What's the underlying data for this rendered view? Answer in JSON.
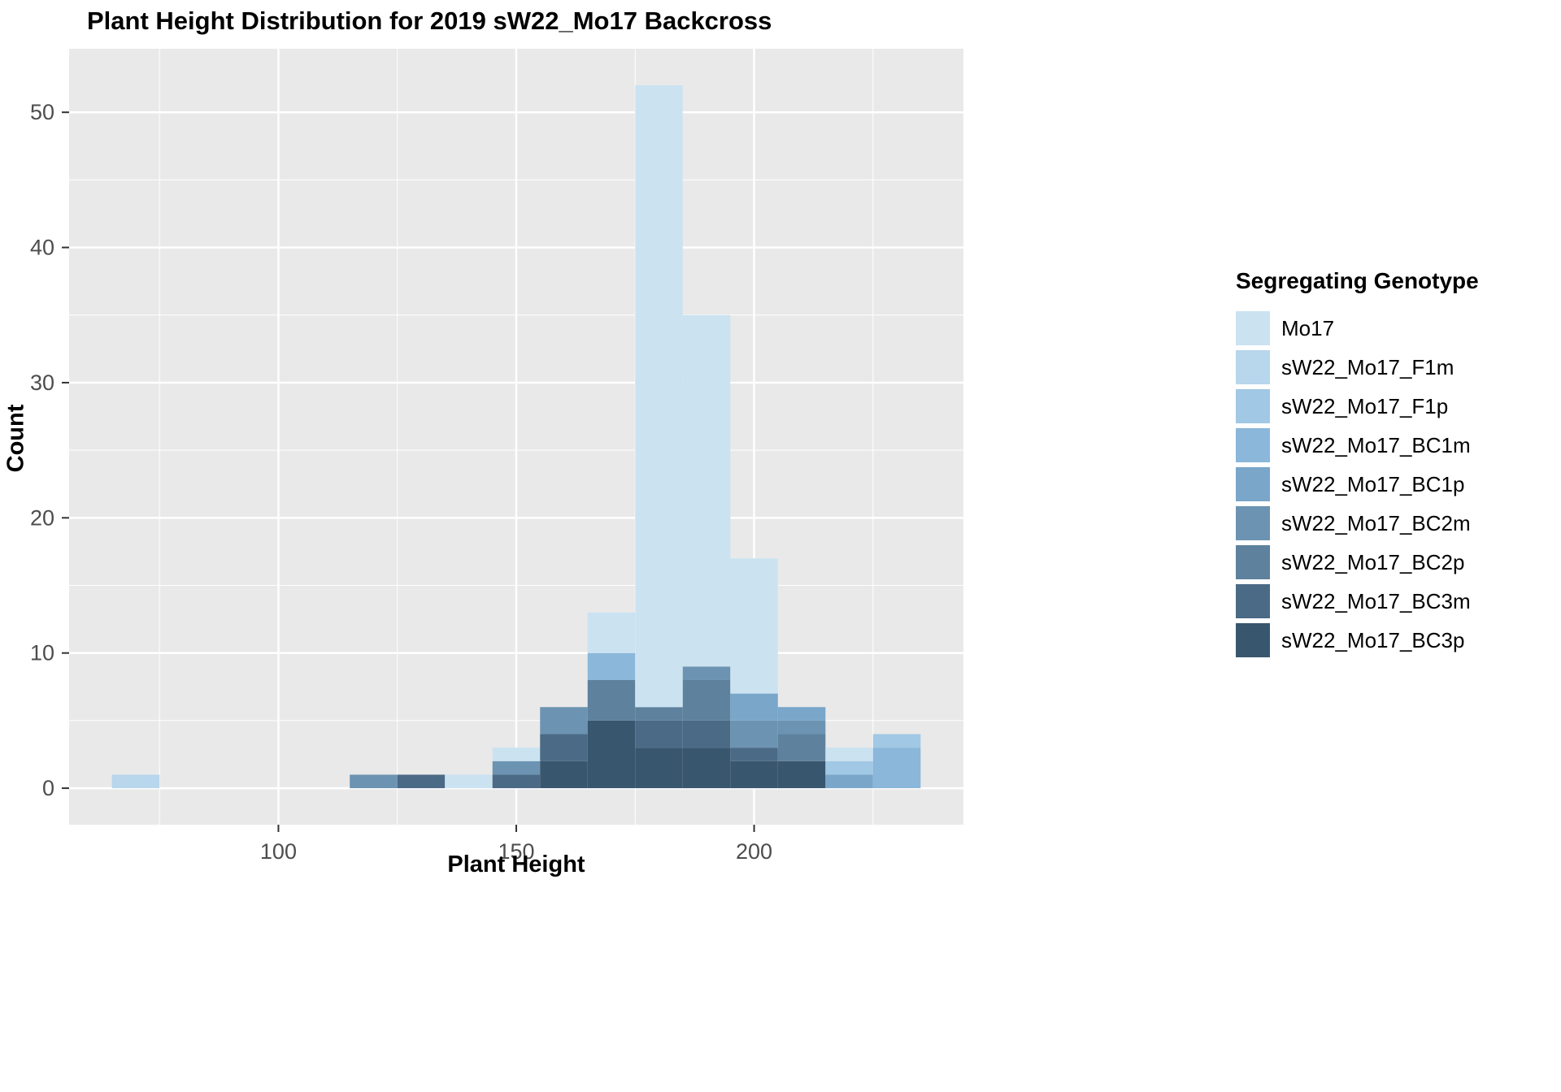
{
  "chart_data": {
    "type": "bar",
    "subtype": "stacked-histogram",
    "title": "Plant Height Distribution for 2019 sW22_Mo17 Backcross",
    "xlabel": "Plant Height",
    "ylabel": "Count",
    "legend_title": "Segregating Genotype",
    "legend_position": "right",
    "grid": true,
    "panel_bg": "#e9e9e9",
    "grid_color": "#ffffff",
    "tick_label_color": "#4d4d4d",
    "tick_mark_color": "#333333",
    "x_ticks": [
      100,
      150,
      200
    ],
    "y_ticks": [
      0,
      10,
      20,
      30,
      40,
      50
    ],
    "x_minor_ticks": [
      75,
      125,
      175,
      225
    ],
    "y_minor_ticks": [
      5,
      15,
      25,
      35,
      45
    ],
    "x_domain": [
      56,
      244
    ],
    "y_domain": [
      -2.7,
      54.7
    ],
    "bin_width": 10,
    "genotypes": [
      {
        "name": "Mo17",
        "color": "#cbe2f1"
      },
      {
        "name": "sW22_Mo17_F1m",
        "color": "#b8d6ec"
      },
      {
        "name": "sW22_Mo17_F1p",
        "color": "#a1c8e4"
      },
      {
        "name": "sW22_Mo17_BC1m",
        "color": "#8ab7da"
      },
      {
        "name": "sW22_Mo17_BC1p",
        "color": "#79a6c9"
      },
      {
        "name": "sW22_Mo17_BC2m",
        "color": "#6c94b2"
      },
      {
        "name": "sW22_Mo17_BC2p",
        "color": "#5e829d"
      },
      {
        "name": "sW22_Mo17_BC3m",
        "color": "#4b6a86"
      },
      {
        "name": "sW22_Mo17_BC3p",
        "color": "#39566f"
      }
    ],
    "counts_order_note": "counts arrays follow genotypes order; stacking bottom-to-top is last genotype first, Mo17 on top",
    "bins": [
      {
        "center": 70,
        "total": 1,
        "counts": [
          0,
          1,
          0,
          0,
          0,
          0,
          0,
          0,
          0
        ]
      },
      {
        "center": 120,
        "total": 1,
        "counts": [
          0,
          0,
          0,
          0,
          0,
          1,
          0,
          0,
          0
        ]
      },
      {
        "center": 130,
        "total": 1,
        "counts": [
          0,
          0,
          0,
          0,
          0,
          0,
          0,
          1,
          0
        ]
      },
      {
        "center": 140,
        "total": 1,
        "counts": [
          1,
          0,
          0,
          0,
          0,
          0,
          0,
          0,
          0
        ]
      },
      {
        "center": 150,
        "total": 3,
        "counts": [
          1,
          0,
          0,
          0,
          0,
          1,
          0,
          1,
          0
        ]
      },
      {
        "center": 160,
        "total": 6,
        "counts": [
          0,
          0,
          0,
          0,
          0,
          2,
          0,
          2,
          2
        ]
      },
      {
        "center": 170,
        "total": 13,
        "counts": [
          3,
          0,
          0,
          2,
          0,
          0,
          3,
          0,
          5
        ]
      },
      {
        "center": 180,
        "total": 52,
        "counts": [
          46,
          0,
          0,
          0,
          0,
          0,
          1,
          2,
          3
        ]
      },
      {
        "center": 190,
        "total": 35,
        "counts": [
          26,
          0,
          0,
          0,
          0,
          1,
          3,
          2,
          3
        ]
      },
      {
        "center": 200,
        "total": 17,
        "counts": [
          10,
          0,
          0,
          0,
          2,
          2,
          0,
          1,
          2
        ]
      },
      {
        "center": 210,
        "total": 6,
        "counts": [
          0,
          0,
          0,
          0,
          1,
          1,
          2,
          0,
          2
        ]
      },
      {
        "center": 220,
        "total": 3,
        "counts": [
          1,
          0,
          1,
          0,
          1,
          0,
          0,
          0,
          0
        ]
      },
      {
        "center": 230,
        "total": 4,
        "counts": [
          0,
          0,
          1,
          3,
          0,
          0,
          0,
          0,
          0
        ]
      }
    ]
  }
}
